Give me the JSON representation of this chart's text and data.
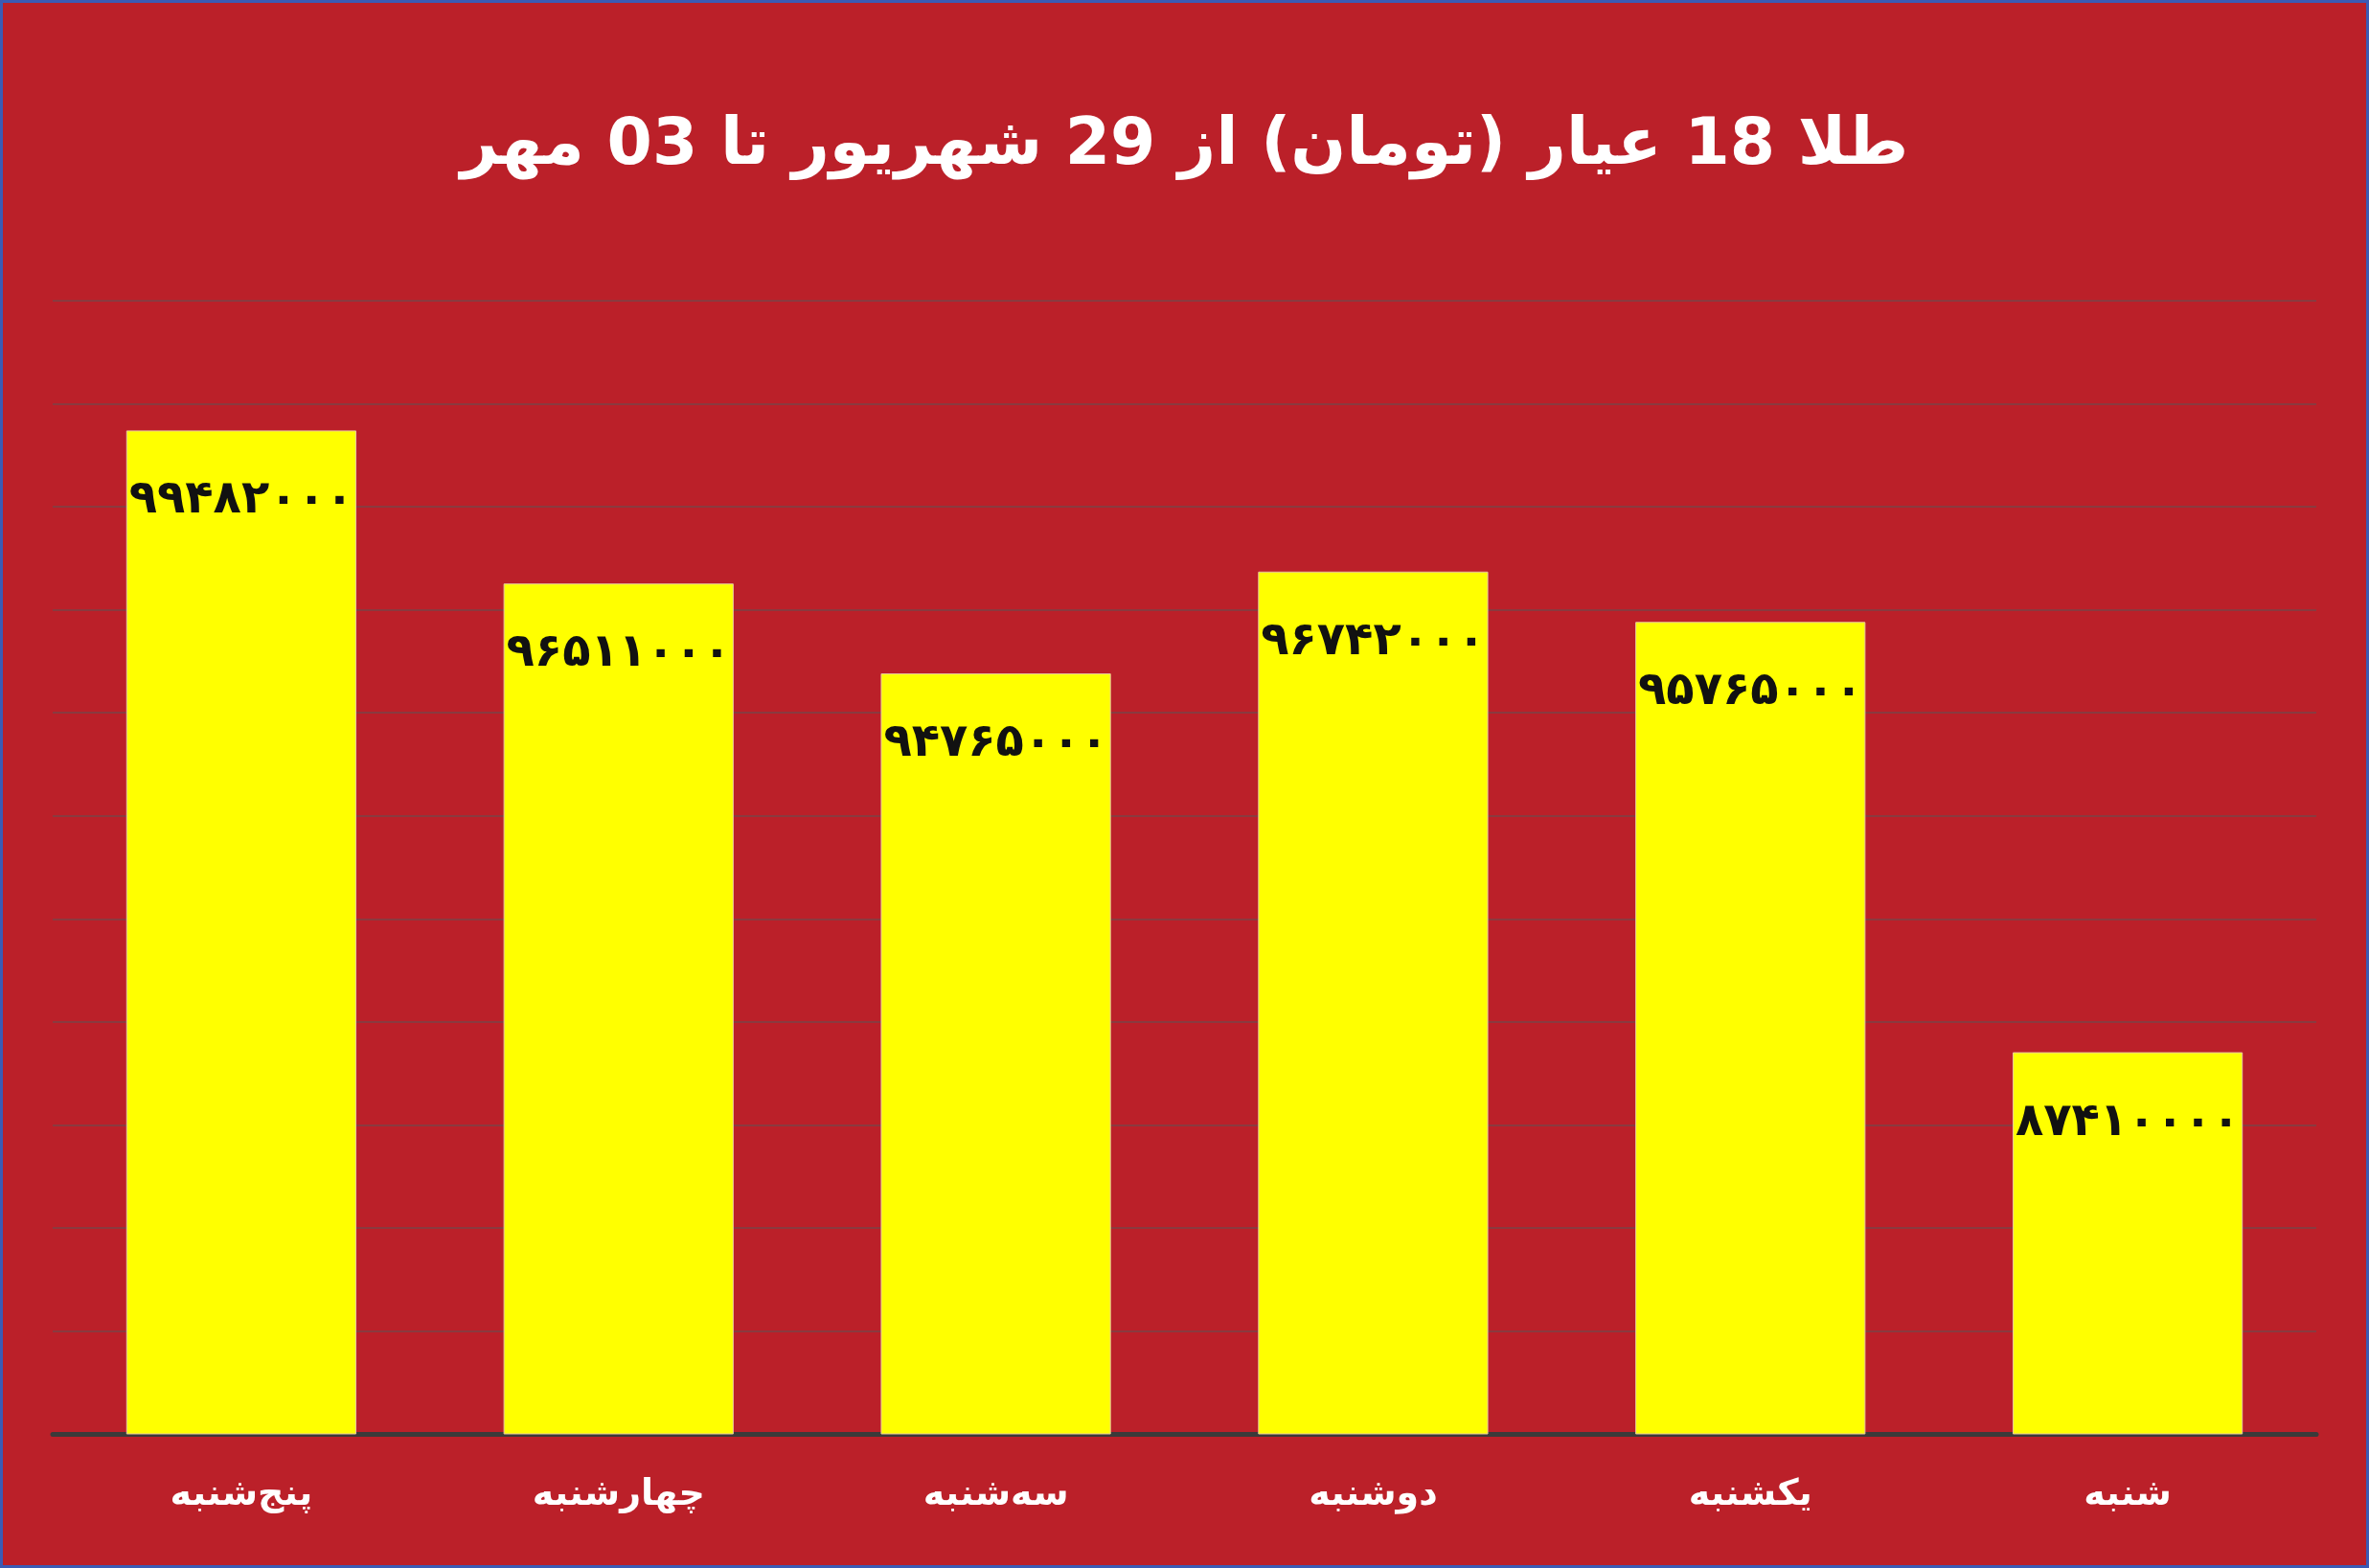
{
  "chart_data": {
    "type": "bar",
    "title": "طلا 18 عیار (تومان) از 29 شهریور تا 03 مهر",
    "categories": [
      "پنج‌شنبه",
      "چهارشنبه",
      "سه‌شنبه",
      "دوشنبه",
      "یکشنبه",
      "شنبه"
    ],
    "values": [
      99482000,
      96511000,
      94765000,
      96742000,
      95765000,
      87410000
    ],
    "value_labels": [
      "۹۹۴۸۲۰۰۰",
      "۹۶۵۱۱۰۰۰",
      "۹۴۷۶۵۰۰۰",
      "۹۶۷۴۲۰۰۰",
      "۹۵۷۶۵۰۰۰",
      "۸۷۴۱۰۰۰۰"
    ],
    "color": "#ffff00",
    "grid": "y",
    "tick_labels": "x",
    "ylim": [
      80000000,
      102000000
    ],
    "yticks": [
      {
        "value": 80000000,
        "label": null
      },
      {
        "value": 82000000,
        "label": null
      },
      {
        "value": 84000000,
        "label": null
      },
      {
        "value": 86000000,
        "label": null
      },
      {
        "value": 88000000,
        "label": null
      },
      {
        "value": 90000000,
        "label": null
      },
      {
        "value": 92000000,
        "label": null
      },
      {
        "value": 94000000,
        "label": null
      },
      {
        "value": 96000000,
        "label": null
      },
      {
        "value": 98000000,
        "label": null
      },
      {
        "value": 100000000,
        "label": null
      },
      {
        "value": 102000000,
        "label": null
      }
    ]
  }
}
